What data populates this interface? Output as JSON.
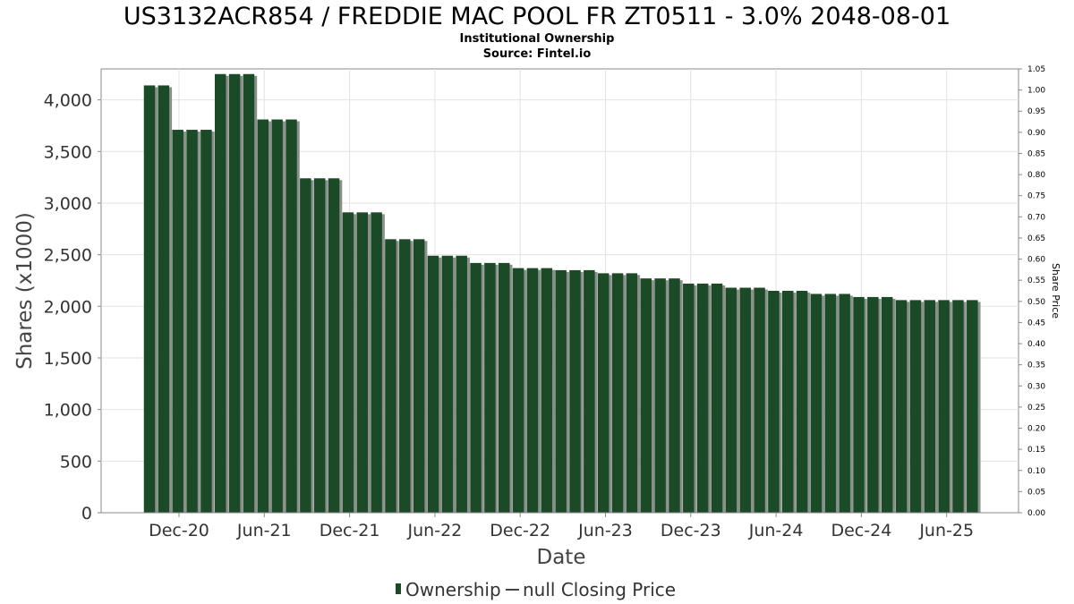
{
  "chart_data": {
    "type": "bar",
    "title": "US3132ACR854 / FREDDIE MAC POOL FR ZT0511 - 3.0% 2048-08-01",
    "subtitle": "Institutional Ownership",
    "source": "Source: Fintel.io",
    "xlabel": "Date",
    "ylabel": "Shares (x1000)",
    "y2label": "Share Price",
    "ylim": [
      0,
      4300
    ],
    "y2lim": [
      0,
      1.05
    ],
    "yticks": [
      "0",
      "500",
      "1,000",
      "1,500",
      "2,000",
      "2,500",
      "3,000",
      "3,500",
      "4,000"
    ],
    "y2ticks": [
      "0.00",
      "0.05",
      "0.10",
      "0.15",
      "0.20",
      "0.25",
      "0.30",
      "0.35",
      "0.40",
      "0.45",
      "0.50",
      "0.55",
      "0.60",
      "0.65",
      "0.70",
      "0.75",
      "0.80",
      "0.85",
      "0.90",
      "0.95",
      "1.00",
      "1.05"
    ],
    "xticks": [
      "Dec-20",
      "Jun-21",
      "Dec-21",
      "Jun-22",
      "Dec-22",
      "Jun-23",
      "Dec-23",
      "Jun-24",
      "Dec-24",
      "Jun-25"
    ],
    "grid": true,
    "legend_position": "bottom",
    "series": [
      {
        "name": "Ownership",
        "color": "#1b4a26",
        "values": [
          4140,
          4140,
          3710,
          3710,
          3710,
          4250,
          4250,
          4250,
          3810,
          3810,
          3810,
          3240,
          3240,
          3240,
          2910,
          2910,
          2910,
          2650,
          2650,
          2650,
          2490,
          2490,
          2490,
          2420,
          2420,
          2420,
          2370,
          2370,
          2370,
          2350,
          2350,
          2350,
          2320,
          2320,
          2320,
          2270,
          2270,
          2270,
          2220,
          2220,
          2220,
          2180,
          2180,
          2180,
          2150,
          2150,
          2150,
          2120,
          2120,
          2120,
          2090,
          2090,
          2090,
          2060,
          2060,
          2060,
          2060,
          2060,
          2060
        ]
      },
      {
        "name": "null Closing Price",
        "color": "#444444",
        "values": []
      }
    ]
  }
}
